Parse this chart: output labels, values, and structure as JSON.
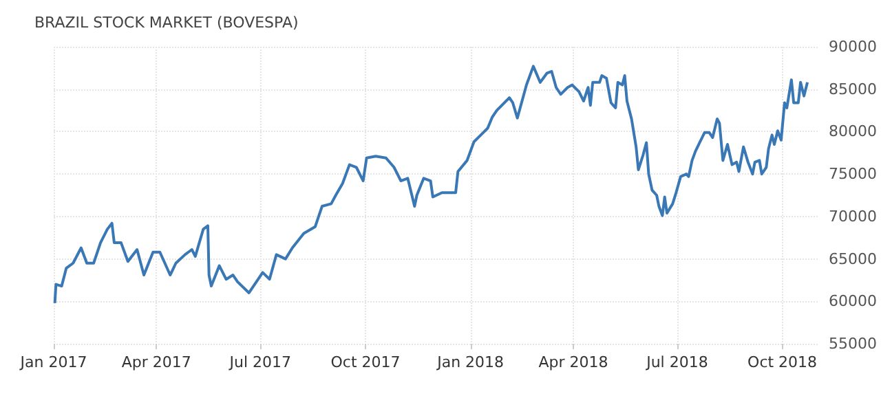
{
  "chart_data": {
    "type": "line",
    "title": "BRAZIL STOCK MARKET (BOVESPA)",
    "x": [
      "2017-01-02",
      "2017-01-03",
      "2017-01-08",
      "2017-01-12",
      "2017-01-18",
      "2017-01-25",
      "2017-01-30",
      "2017-02-05",
      "2017-02-11",
      "2017-02-17",
      "2017-02-21",
      "2017-02-23",
      "2017-03-01",
      "2017-03-07",
      "2017-03-15",
      "2017-03-21",
      "2017-03-29",
      "2017-04-04",
      "2017-04-13",
      "2017-04-18",
      "2017-04-26",
      "2017-05-02",
      "2017-05-05",
      "2017-05-12",
      "2017-05-16",
      "2017-05-17",
      "2017-05-19",
      "2017-05-26",
      "2017-06-01",
      "2017-06-07",
      "2017-06-11",
      "2017-06-21",
      "2017-07-03",
      "2017-07-09",
      "2017-07-15",
      "2017-07-23",
      "2017-07-29",
      "2017-08-08",
      "2017-08-18",
      "2017-08-24",
      "2017-09-01",
      "2017-09-05",
      "2017-09-11",
      "2017-09-17",
      "2017-09-23",
      "2017-09-29",
      "2017-10-02",
      "2017-10-10",
      "2017-10-19",
      "2017-10-26",
      "2017-11-01",
      "2017-11-07",
      "2017-11-13",
      "2017-11-15",
      "2017-11-21",
      "2017-11-27",
      "2017-11-29",
      "2017-12-07",
      "2017-12-13",
      "2017-12-19",
      "2017-12-21",
      "2017-12-29",
      "2018-01-04",
      "2018-01-10",
      "2018-01-16",
      "2018-01-20",
      "2018-01-24",
      "2018-02-04",
      "2018-02-07",
      "2018-02-11",
      "2018-02-19",
      "2018-02-25",
      "2018-03-03",
      "2018-03-09",
      "2018-03-13",
      "2018-03-17",
      "2018-03-21",
      "2018-03-27",
      "2018-03-31",
      "2018-04-06",
      "2018-04-10",
      "2018-04-14",
      "2018-04-16",
      "2018-04-18",
      "2018-04-24",
      "2018-04-26",
      "2018-04-30",
      "2018-05-04",
      "2018-05-08",
      "2018-05-10",
      "2018-05-14",
      "2018-05-16",
      "2018-05-18",
      "2018-05-22",
      "2018-05-26",
      "2018-05-28",
      "2018-06-01",
      "2018-06-04",
      "2018-06-06",
      "2018-06-09",
      "2018-06-13",
      "2018-06-15",
      "2018-06-18",
      "2018-06-20",
      "2018-06-22",
      "2018-06-27",
      "2018-06-30",
      "2018-07-04",
      "2018-07-09",
      "2018-07-11",
      "2018-07-14",
      "2018-07-17",
      "2018-07-21",
      "2018-07-25",
      "2018-07-29",
      "2018-08-01",
      "2018-08-05",
      "2018-08-07",
      "2018-08-10",
      "2018-08-14",
      "2018-08-18",
      "2018-08-22",
      "2018-08-24",
      "2018-08-28",
      "2018-09-01",
      "2018-09-05",
      "2018-09-07",
      "2018-09-11",
      "2018-09-13",
      "2018-09-17",
      "2018-09-19",
      "2018-09-22",
      "2018-09-24",
      "2018-09-27",
      "2018-09-30",
      "2018-10-03",
      "2018-10-05",
      "2018-10-09",
      "2018-10-11",
      "2018-10-15",
      "2018-10-17",
      "2018-10-20",
      "2018-10-23"
    ],
    "series": [
      {
        "color": "#3a78b5",
        "values": [
          59800,
          62000,
          61800,
          63900,
          64500,
          66300,
          64500,
          64500,
          66900,
          68500,
          69200,
          66900,
          66900,
          64700,
          66100,
          63100,
          65800,
          65800,
          63100,
          64500,
          65500,
          66100,
          65300,
          68500,
          68900,
          63100,
          61800,
          64200,
          62600,
          63100,
          62300,
          61000,
          63400,
          62600,
          65500,
          65000,
          66300,
          68000,
          68800,
          71200,
          71500,
          72500,
          73900,
          76100,
          75800,
          74200,
          76900,
          77100,
          76900,
          75800,
          74200,
          74500,
          71200,
          72500,
          74500,
          74200,
          72300,
          72800,
          72800,
          72800,
          75300,
          76600,
          78800,
          79600,
          80400,
          81700,
          82500,
          84000,
          83400,
          81600,
          85500,
          87700,
          85800,
          86900,
          87100,
          85200,
          84400,
          85200,
          85500,
          84700,
          83600,
          85200,
          83100,
          85800,
          85800,
          86600,
          86300,
          83400,
          82800,
          85800,
          85500,
          86600,
          83600,
          81500,
          78200,
          75500,
          77200,
          78700,
          75000,
          73100,
          72500,
          71200,
          70100,
          72300,
          70400,
          71500,
          72800,
          74700,
          75000,
          74700,
          76600,
          77700,
          78800,
          79900,
          79900,
          79300,
          81500,
          81000,
          76600,
          78500,
          76100,
          76400,
          75300,
          78200,
          76400,
          75000,
          76400,
          76600,
          75000,
          75800,
          78000,
          79600,
          78500,
          80100,
          79000,
          83400,
          82800,
          86100,
          83400,
          83400,
          85800,
          84200,
          85800
        ]
      }
    ],
    "xlim": [
      "2017-01-01",
      "2018-11-01"
    ],
    "xticks": [
      {
        "value": "2017-01-01",
        "label": "Jan 2017"
      },
      {
        "value": "2017-04-01",
        "label": "Apr 2017"
      },
      {
        "value": "2017-07-01",
        "label": "Jul 2017"
      },
      {
        "value": "2017-10-01",
        "label": "Oct 2017"
      },
      {
        "value": "2018-01-01",
        "label": "Jan 2018"
      },
      {
        "value": "2018-04-01",
        "label": "Apr 2018"
      },
      {
        "value": "2018-07-01",
        "label": "Jul 2018"
      },
      {
        "value": "2018-10-01",
        "label": "Oct 2018"
      }
    ],
    "ylim": [
      55000,
      90000
    ],
    "yticks": [
      55000,
      60000,
      65000,
      70000,
      75000,
      80000,
      85000,
      90000
    ],
    "grid": true,
    "marker": "none",
    "line_style": "solid"
  }
}
